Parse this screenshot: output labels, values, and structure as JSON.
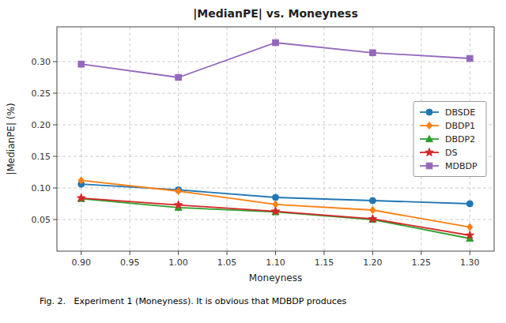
{
  "chart_data": {
    "type": "line",
    "title": "|MedianPE| vs. Moneyness",
    "xlabel": "Moneyness",
    "ylabel": "|MedianPE| (%)",
    "caption": "Fig. 2.   Experiment 1 (Moneyness). It is obvious that MDBDP produces",
    "x": [
      0.9,
      1.0,
      1.1,
      1.2,
      1.3
    ],
    "series": [
      {
        "name": "DBSDE",
        "color": "#1f77b4",
        "marker": "circle",
        "values": [
          0.106,
          0.097,
          0.085,
          0.08,
          0.075
        ]
      },
      {
        "name": "DBDP1",
        "color": "#ff7f0e",
        "marker": "diamond",
        "values": [
          0.112,
          0.095,
          0.074,
          0.065,
          0.038
        ]
      },
      {
        "name": "DBDP2",
        "color": "#2ca02c",
        "marker": "triangle",
        "values": [
          0.083,
          0.069,
          0.062,
          0.05,
          0.02
        ]
      },
      {
        "name": "DS",
        "color": "#d62728",
        "marker": "star",
        "values": [
          0.084,
          0.073,
          0.063,
          0.051,
          0.025
        ]
      },
      {
        "name": "MDBDP",
        "color": "#9467bd",
        "marker": "square",
        "values": [
          0.296,
          0.275,
          0.33,
          0.314,
          0.305
        ]
      }
    ],
    "xlim": [
      0.875,
      1.325
    ],
    "ylim": [
      0.0,
      0.355
    ],
    "xticks": [
      {
        "value": 0.9,
        "label": "0.90"
      },
      0.95,
      {
        "value": 1.0,
        "label": "1.00"
      },
      1.05,
      {
        "value": 1.1,
        "label": "1.10"
      },
      1.15,
      {
        "value": 1.2,
        "label": "1.20"
      },
      1.25,
      {
        "value": 1.3,
        "label": "1.30"
      }
    ],
    "yticks": [
      0.05,
      {
        "value": 0.1,
        "label": "0.10"
      },
      0.15,
      {
        "value": 0.2,
        "label": "0.20"
      },
      0.25,
      {
        "value": 0.3,
        "label": "0.30"
      }
    ],
    "grid": true,
    "legend": "right"
  }
}
